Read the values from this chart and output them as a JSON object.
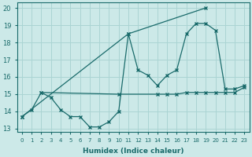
{
  "xlabel": "Humidex (Indice chaleur)",
  "bg_color": "#cce9e8",
  "grid_color": "#aad4d3",
  "line_color": "#1a6b6b",
  "xlim": [
    -0.5,
    23.5
  ],
  "ylim": [
    12.8,
    20.3
  ],
  "yticks": [
    13,
    14,
    15,
    16,
    17,
    18,
    19,
    20
  ],
  "xticks": [
    0,
    1,
    2,
    3,
    4,
    5,
    6,
    7,
    8,
    9,
    10,
    11,
    12,
    13,
    14,
    15,
    16,
    17,
    18,
    19,
    20,
    21,
    22,
    23
  ],
  "line1_x": [
    0,
    1,
    2,
    3,
    4,
    5,
    6,
    7,
    8,
    9,
    10,
    11,
    12,
    13,
    14,
    15,
    16,
    17,
    18,
    19,
    20,
    21,
    22,
    23
  ],
  "line1_y": [
    13.7,
    14.1,
    15.1,
    14.8,
    14.1,
    13.7,
    13.7,
    13.1,
    13.1,
    13.4,
    14.0,
    18.5,
    16.4,
    16.1,
    15.5,
    16.1,
    16.4,
    18.5,
    19.1,
    19.1,
    18.7,
    15.3,
    15.3,
    15.5
  ],
  "line2_x": [
    0,
    11,
    19
  ],
  "line2_y": [
    13.7,
    18.5,
    20.0
  ],
  "line3_x": [
    2,
    10,
    14,
    15,
    16,
    17,
    18,
    19,
    20,
    21,
    22,
    23
  ],
  "line3_y": [
    15.1,
    15.0,
    15.0,
    15.0,
    15.0,
    15.1,
    15.1,
    15.1,
    15.1,
    15.1,
    15.1,
    15.4
  ]
}
